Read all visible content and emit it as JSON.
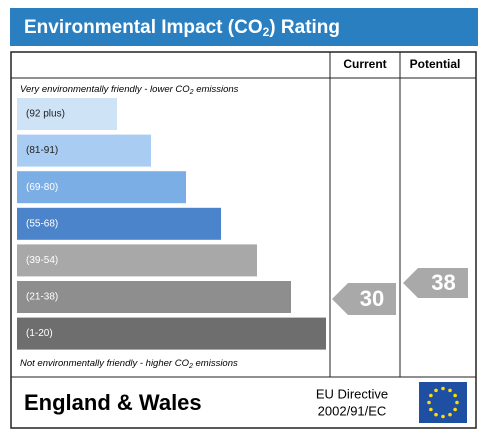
{
  "header": {
    "title": [
      "Environmental Impact (CO",
      "2",
      ") Rating"
    ]
  },
  "columns": [
    "Current",
    "Potential"
  ],
  "top_note": [
    "Very environmentally friendly - lower CO",
    "2",
    " emissions"
  ],
  "bottom_note": [
    "Not environmentally friendly - higher CO",
    "2",
    " emissions"
  ],
  "bands": [
    {
      "label": "(92 plus)",
      "color": "#cfe3f7"
    },
    {
      "label": "(81-91)",
      "color": "#a9cdf2"
    },
    {
      "label": "(69-80)",
      "color": "#7aaee5"
    },
    {
      "label": "(55-68)",
      "color": "#4b84cb"
    },
    {
      "label": "(39-54)",
      "color": "#a8a8a8"
    },
    {
      "label": "(21-38)",
      "color": "#8e8e8e"
    },
    {
      "label": "(1-20)",
      "color": "#6e6e6e"
    }
  ],
  "ratings": {
    "current": 30,
    "potential": 38
  },
  "footer": {
    "region": "England & Wales",
    "directive": [
      "EU Directive",
      "2002/91/EC"
    ]
  }
}
